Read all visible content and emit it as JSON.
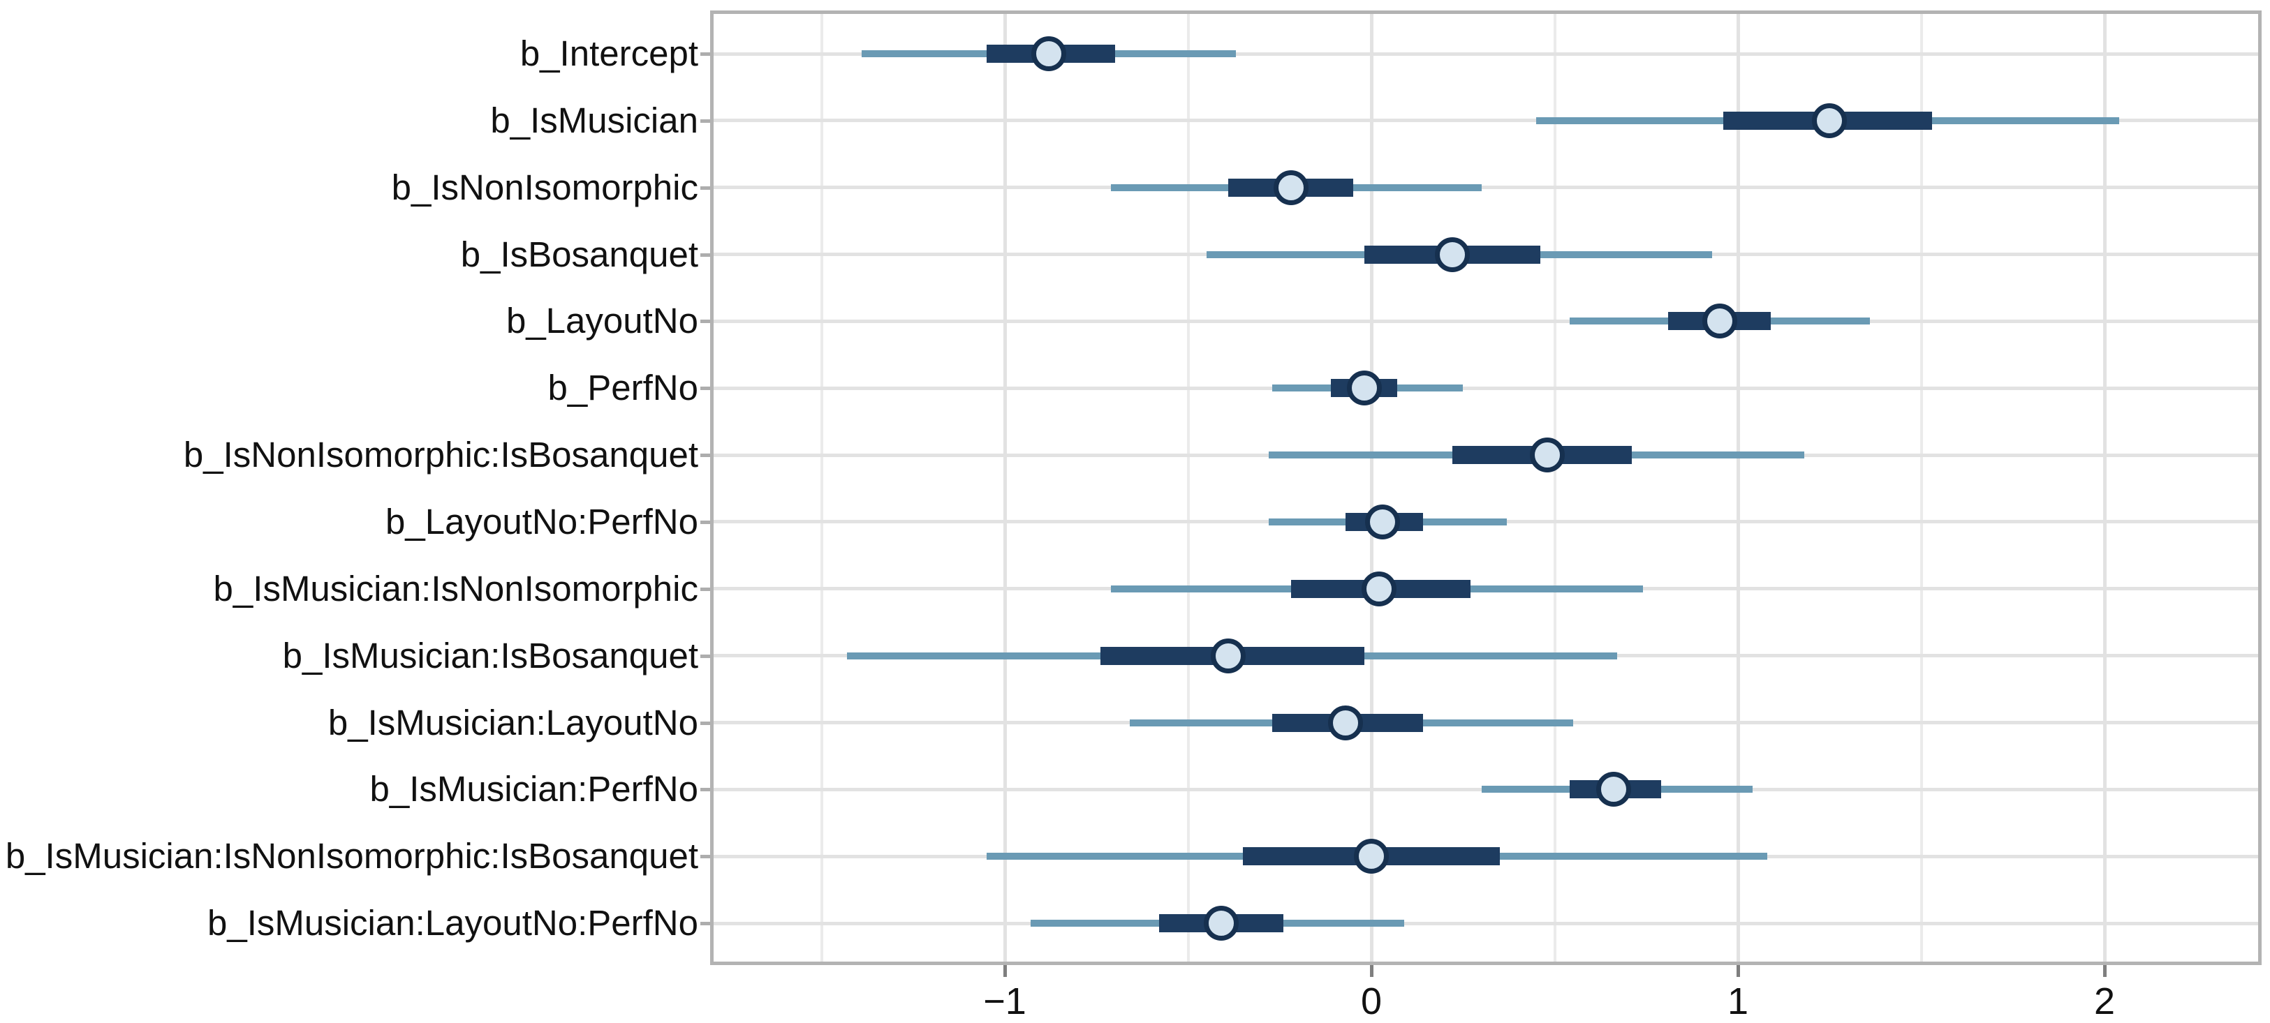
{
  "chart_data": {
    "type": "interval",
    "title": "",
    "xlabel": "",
    "ylabel": "",
    "grid": true,
    "legend_position": "none",
    "x_axis": {
      "range": [
        -1.79,
        2.42
      ],
      "major_ticks": [
        {
          "value": -1,
          "label": "−1"
        },
        {
          "value": 0,
          "label": "0"
        },
        {
          "value": 1,
          "label": "1"
        },
        {
          "value": 2,
          "label": "2"
        }
      ],
      "minor_gridlines": [
        -1.5,
        -0.5,
        0.5,
        1.5
      ]
    },
    "rows": [
      {
        "label": "b_Intercept",
        "outer": [
          -1.39,
          -0.37
        ],
        "inner": [
          -1.05,
          -0.7
        ],
        "point": -0.88
      },
      {
        "label": "b_IsMusician",
        "outer": [
          0.45,
          2.04
        ],
        "inner": [
          0.96,
          1.53
        ],
        "point": 1.25
      },
      {
        "label": "b_IsNonIsomorphic",
        "outer": [
          -0.71,
          0.3
        ],
        "inner": [
          -0.39,
          -0.05
        ],
        "point": -0.22
      },
      {
        "label": "b_IsBosanquet",
        "outer": [
          -0.45,
          0.93
        ],
        "inner": [
          -0.02,
          0.46
        ],
        "point": 0.22
      },
      {
        "label": "b_LayoutNo",
        "outer": [
          0.54,
          1.36
        ],
        "inner": [
          0.81,
          1.09
        ],
        "point": 0.95
      },
      {
        "label": "b_PerfNo",
        "outer": [
          -0.27,
          0.25
        ],
        "inner": [
          -0.11,
          0.07
        ],
        "point": -0.02
      },
      {
        "label": "b_IsNonIsomorphic:IsBosanquet",
        "outer": [
          -0.28,
          1.18
        ],
        "inner": [
          0.22,
          0.71
        ],
        "point": 0.48
      },
      {
        "label": "b_LayoutNo:PerfNo",
        "outer": [
          -0.28,
          0.37
        ],
        "inner": [
          -0.07,
          0.14
        ],
        "point": 0.03
      },
      {
        "label": "b_IsMusician:IsNonIsomorphic",
        "outer": [
          -0.71,
          0.74
        ],
        "inner": [
          -0.22,
          0.27
        ],
        "point": 0.02
      },
      {
        "label": "b_IsMusician:IsBosanquet",
        "outer": [
          -1.43,
          0.67
        ],
        "inner": [
          -0.74,
          -0.02
        ],
        "point": -0.39
      },
      {
        "label": "b_IsMusician:LayoutNo",
        "outer": [
          -0.66,
          0.55
        ],
        "inner": [
          -0.27,
          0.14
        ],
        "point": -0.07
      },
      {
        "label": "b_IsMusician:PerfNo",
        "outer": [
          0.3,
          1.04
        ],
        "inner": [
          0.54,
          0.79
        ],
        "point": 0.66
      },
      {
        "label": "b_IsMusician:IsNonIsomorphic:IsBosanquet",
        "outer": [
          -1.05,
          1.08
        ],
        "inner": [
          -0.35,
          0.35
        ],
        "point": 0.0
      },
      {
        "label": "b_IsMusician:LayoutNo:PerfNo",
        "outer": [
          -0.93,
          0.09
        ],
        "inner": [
          -0.58,
          -0.24
        ],
        "point": -0.41
      }
    ],
    "colors": {
      "outer_interval": "#6a9ab4",
      "inner_interval": "#1e3c60",
      "point_fill": "#d4e3ef",
      "point_border": "#16304f",
      "grid_major": "#e2e2e2",
      "grid_minor": "#ebebeb",
      "panel_border": "#b3b3b3",
      "y_tick": "#adadad",
      "x_tick": "#7f7f7f",
      "text": "#111111"
    }
  }
}
